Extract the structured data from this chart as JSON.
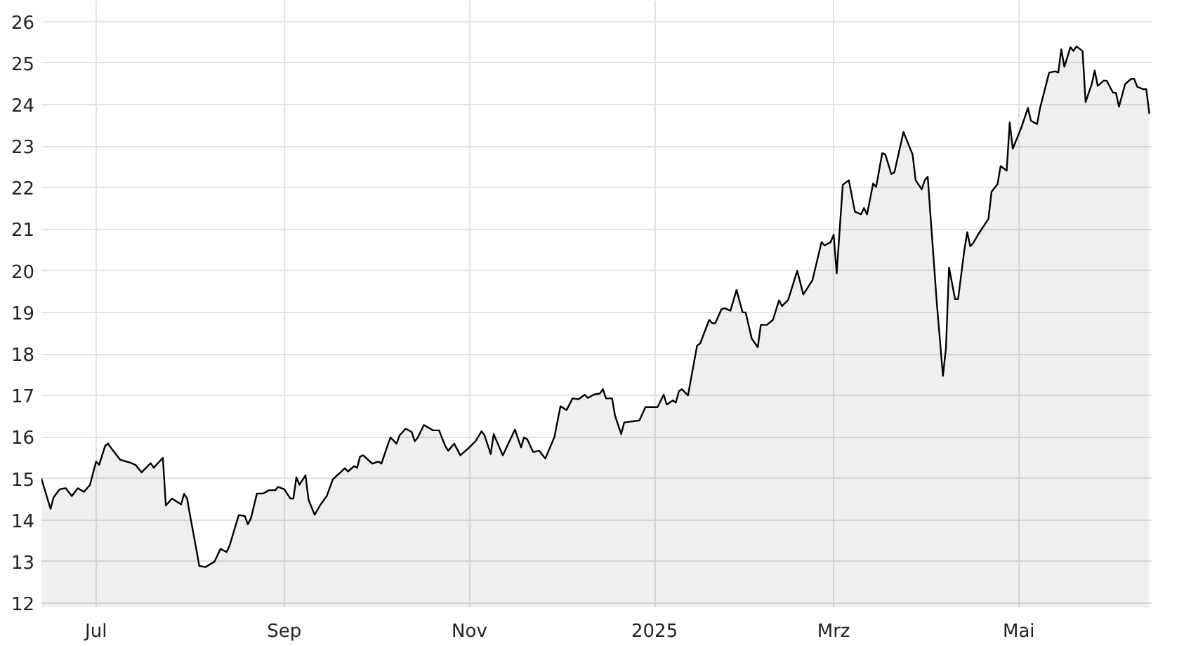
{
  "chart_data": {
    "type": "area",
    "x": [
      "2024-06-13",
      "2024-06-16",
      "2024-06-17",
      "2024-06-19",
      "2024-06-21",
      "2024-06-23",
      "2024-06-25",
      "2024-06-27",
      "2024-06-29",
      "2024-07-01",
      "2024-07-02",
      "2024-07-04",
      "2024-07-05",
      "2024-07-06",
      "2024-07-09",
      "2024-07-12",
      "2024-07-14",
      "2024-07-16",
      "2024-07-19",
      "2024-07-20",
      "2024-07-23",
      "2024-07-24",
      "2024-07-26",
      "2024-07-29",
      "2024-07-30",
      "2024-07-31",
      "2024-08-01",
      "2024-08-03",
      "2024-08-04",
      "2024-08-06",
      "2024-08-09",
      "2024-08-11",
      "2024-08-13",
      "2024-08-14",
      "2024-08-16",
      "2024-08-17",
      "2024-08-19",
      "2024-08-20",
      "2024-08-21",
      "2024-08-23",
      "2024-08-25",
      "2024-08-27",
      "2024-08-29",
      "2024-08-30",
      "2024-09-01",
      "2024-09-03",
      "2024-09-04",
      "2024-09-05",
      "2024-09-06",
      "2024-09-08",
      "2024-09-09",
      "2024-09-11",
      "2024-09-13",
      "2024-09-15",
      "2024-09-17",
      "2024-09-18",
      "2024-09-21",
      "2024-09-22",
      "2024-09-24",
      "2024-09-25",
      "2024-09-26",
      "2024-09-27",
      "2024-09-30",
      "2024-10-02",
      "2024-10-03",
      "2024-10-05",
      "2024-10-06",
      "2024-10-08",
      "2024-10-09",
      "2024-10-11",
      "2024-10-13",
      "2024-10-14",
      "2024-10-15",
      "2024-10-17",
      "2024-10-20",
      "2024-10-22",
      "2024-10-24",
      "2024-10-25",
      "2024-10-27",
      "2024-10-29",
      "2024-11-01",
      "2024-11-03",
      "2024-11-05",
      "2024-11-06",
      "2024-11-08",
      "2024-11-09",
      "2024-11-12",
      "2024-11-16",
      "2024-11-18",
      "2024-11-19",
      "2024-11-20",
      "2024-11-22",
      "2024-11-24",
      "2024-11-26",
      "2024-11-29",
      "2024-12-01",
      "2024-12-03",
      "2024-12-05",
      "2024-12-07",
      "2024-12-09",
      "2024-12-10",
      "2024-12-12",
      "2024-12-14",
      "2024-12-15",
      "2024-12-16",
      "2024-12-18",
      "2024-12-19",
      "2024-12-21",
      "2024-12-22",
      "2024-12-27",
      "2024-12-29",
      "2025-01-02",
      "2025-01-04",
      "2025-01-05",
      "2025-01-07",
      "2025-01-08",
      "2025-01-09",
      "2025-01-10",
      "2025-01-12",
      "2025-01-15",
      "2025-01-16",
      "2025-01-19",
      "2025-01-20",
      "2025-01-21",
      "2025-01-23",
      "2025-01-24",
      "2025-01-26",
      "2025-01-28",
      "2025-01-30",
      "2025-01-31",
      "2025-02-02",
      "2025-02-04",
      "2025-02-05",
      "2025-02-07",
      "2025-02-09",
      "2025-02-11",
      "2025-02-12",
      "2025-02-14",
      "2025-02-17",
      "2025-02-19",
      "2025-02-21",
      "2025-02-22",
      "2025-02-25",
      "2025-02-26",
      "2025-02-28",
      "2025-03-01",
      "2025-03-02",
      "2025-03-04",
      "2025-03-06",
      "2025-03-08",
      "2025-03-10",
      "2025-03-11",
      "2025-03-12",
      "2025-03-14",
      "2025-03-15",
      "2025-03-17",
      "2025-03-18",
      "2025-03-20",
      "2025-03-21",
      "2025-03-24",
      "2025-03-25",
      "2025-03-27",
      "2025-03-28",
      "2025-03-30",
      "2025-03-31",
      "2025-04-01",
      "2025-04-02",
      "2025-04-04",
      "2025-04-06",
      "2025-04-07",
      "2025-04-08",
      "2025-04-10",
      "2025-04-11",
      "2025-04-13",
      "2025-04-14",
      "2025-04-15",
      "2025-04-16",
      "2025-04-18",
      "2025-04-21",
      "2025-04-22",
      "2025-04-24",
      "2025-04-25",
      "2025-04-27",
      "2025-04-28",
      "2025-04-29",
      "2025-05-02",
      "2025-05-04",
      "2025-05-05",
      "2025-05-07",
      "2025-05-08",
      "2025-05-11",
      "2025-05-13",
      "2025-05-14",
      "2025-05-15",
      "2025-05-16",
      "2025-05-18",
      "2025-05-19",
      "2025-05-20",
      "2025-05-22",
      "2025-05-23",
      "2025-05-25",
      "2025-05-26",
      "2025-05-27",
      "2025-05-29",
      "2025-05-30",
      "2025-06-01",
      "2025-06-02",
      "2025-06-03",
      "2025-06-05",
      "2025-06-07",
      "2025-06-08",
      "2025-06-09",
      "2025-06-11",
      "2025-06-12",
      "2025-06-13"
    ],
    "series": [
      {
        "color": "#000000",
        "values": [
          15,
          14.27,
          14.55,
          14.74,
          14.77,
          14.58,
          14.77,
          14.68,
          14.85,
          15.41,
          15.33,
          15.79,
          15.84,
          15.73,
          15.45,
          15.39,
          15.33,
          15.15,
          15.37,
          15.26,
          15.5,
          14.35,
          14.52,
          14.38,
          14.63,
          14.52,
          14.1,
          13.31,
          12.9,
          12.87,
          13,
          13.31,
          13.23,
          13.39,
          13.88,
          14.12,
          14.1,
          13.9,
          14.04,
          14.64,
          14.64,
          14.72,
          14.72,
          14.8,
          14.74,
          14.52,
          14.52,
          15.03,
          14.85,
          15.08,
          14.49,
          14.13,
          14.38,
          14.58,
          14.98,
          15.05,
          15.25,
          15.17,
          15.3,
          15.26,
          15.53,
          15.56,
          15.36,
          15.41,
          15.36,
          15.79,
          15.99,
          15.84,
          16.04,
          16.2,
          16.12,
          15.9,
          15.99,
          16.29,
          16.16,
          16.16,
          15.79,
          15.67,
          15.84,
          15.56,
          15.75,
          15.9,
          16.14,
          16.04,
          15.59,
          16.07,
          15.56,
          16.18,
          15.75,
          15.99,
          15.95,
          15.64,
          15.67,
          15.48,
          16,
          16.74,
          16.65,
          16.93,
          16.91,
          17.02,
          16.94,
          17.02,
          17.05,
          17.15,
          16.93,
          16.93,
          16.51,
          16.07,
          16.35,
          16.4,
          16.72,
          16.72,
          17.02,
          16.78,
          16.88,
          16.83,
          17.1,
          17.15,
          17,
          18.2,
          18.25,
          18.82,
          18.74,
          18.74,
          19.07,
          19.1,
          19.04,
          19.54,
          19,
          19,
          18.37,
          18.16,
          18.7,
          18.7,
          18.82,
          19.29,
          19.15,
          19.3,
          20,
          19.43,
          19.66,
          19.77,
          20.69,
          20.61,
          20.69,
          20.87,
          19.94,
          22.07,
          22.18,
          21.42,
          21.36,
          21.51,
          21.36,
          22.1,
          22.02,
          22.83,
          22.8,
          22.33,
          22.37,
          23.34,
          23.16,
          22.8,
          22.18,
          21.96,
          22.18,
          22.26,
          21.23,
          19.21,
          17.47,
          18.14,
          20.08,
          19.32,
          19.32,
          20.47,
          20.93,
          20.59,
          20.67,
          20.92,
          21.25,
          21.9,
          22.09,
          22.52,
          22.41,
          23.57,
          22.94,
          23.48,
          23.92,
          23.61,
          23.53,
          23.92,
          24.77,
          24.8,
          24.77,
          25.33,
          24.91,
          25.38,
          25.29,
          25.4,
          25.29,
          24.06,
          24.49,
          24.82,
          24.45,
          24.58,
          24.57,
          24.29,
          24.28,
          23.95,
          24.49,
          24.62,
          24.62,
          24.43,
          24.37,
          24.37,
          23.78
        ]
      }
    ],
    "xlim": [
      "2024-06-13",
      "2025-06-14"
    ],
    "xticks": [
      {
        "value": "2024-07-01",
        "label": "Jul"
      },
      {
        "value": "2024-09-01",
        "label": "Sep"
      },
      {
        "value": "2024-11-01",
        "label": "Nov"
      },
      {
        "value": "2025-01-01",
        "label": "2025"
      },
      {
        "value": "2025-03-01",
        "label": "Mrz"
      },
      {
        "value": "2025-05-01",
        "label": "Mai"
      }
    ],
    "ylim": [
      11.9,
      26.5
    ],
    "yticks": [
      12,
      13,
      14,
      15,
      16,
      17,
      18,
      19,
      20,
      21,
      22,
      23,
      24,
      25,
      26
    ],
    "grid": true
  }
}
